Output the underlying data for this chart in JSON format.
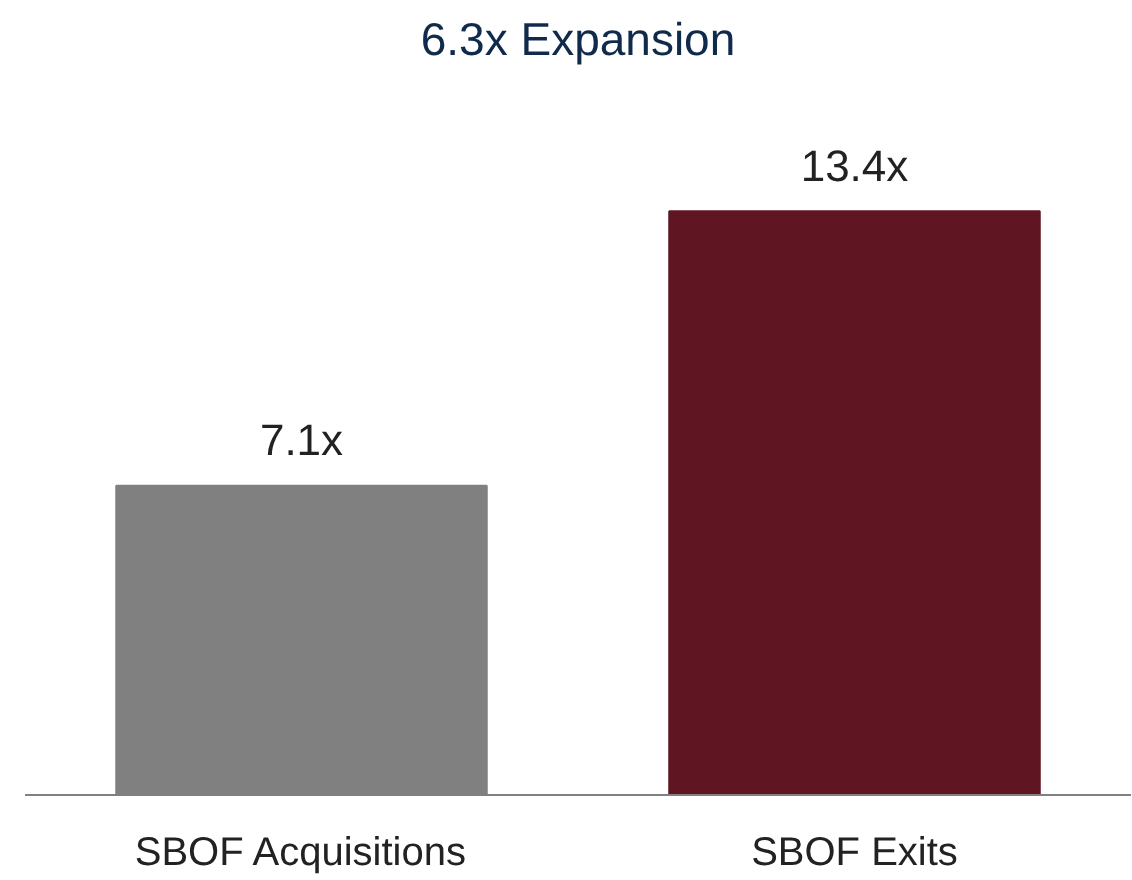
{
  "chart_data": {
    "type": "bar",
    "categories": [
      "SBOF Acquisitions",
      "SBOF Exits"
    ],
    "values": [
      7.1,
      13.4
    ],
    "colors": [
      "#808080",
      "#601622"
    ],
    "value_labels": [
      "7.1x",
      "13.4x"
    ],
    "annotations": [
      "6.3x Expansion"
    ],
    "grid": false
  }
}
